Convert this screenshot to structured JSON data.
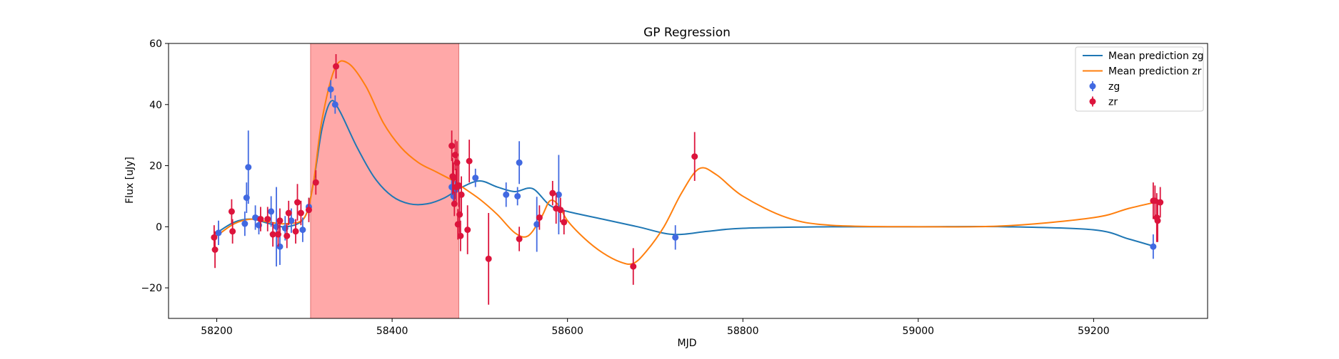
{
  "chart_data": {
    "type": "scatter",
    "title": "GP Regression",
    "xlabel": "MJD",
    "ylabel": "Flux [uJy]",
    "xlim": [
      58145,
      59330
    ],
    "ylim": [
      -30,
      60
    ],
    "xticks": [
      58200,
      58400,
      58600,
      58800,
      59000,
      59200
    ],
    "xtick_labels": [
      "58200",
      "58400",
      "58600",
      "58800",
      "59000",
      "59200"
    ],
    "yticks": [
      -20,
      0,
      20,
      40,
      60
    ],
    "ytick_labels": [
      "−20",
      "0",
      "20",
      "40",
      "60"
    ],
    "grid": false,
    "legend_position": "top-right",
    "shaded_region": {
      "x_start": 58307,
      "x_end": 58476,
      "color": "#ff9999"
    },
    "series": [
      {
        "name": "Mean prediction zg",
        "kind": "line",
        "color": "#1f77b4",
        "points": [
          [
            58200,
            -2
          ],
          [
            58220,
            1.5
          ],
          [
            58240,
            2.5
          ],
          [
            58260,
            1
          ],
          [
            58280,
            0
          ],
          [
            58300,
            3
          ],
          [
            58310,
            14
          ],
          [
            58320,
            32
          ],
          [
            58330,
            41
          ],
          [
            58340,
            38
          ],
          [
            58360,
            26
          ],
          [
            58380,
            16
          ],
          [
            58400,
            10
          ],
          [
            58420,
            7.5
          ],
          [
            58440,
            7.5
          ],
          [
            58460,
            9.5
          ],
          [
            58480,
            13
          ],
          [
            58500,
            15
          ],
          [
            58520,
            13
          ],
          [
            58540,
            11.5
          ],
          [
            58560,
            12.5
          ],
          [
            58580,
            7
          ],
          [
            58600,
            5
          ],
          [
            58640,
            2.5
          ],
          [
            58680,
            0
          ],
          [
            58720,
            -2.5
          ],
          [
            58760,
            -1.5
          ],
          [
            58800,
            -0.5
          ],
          [
            58900,
            0
          ],
          [
            59000,
            0
          ],
          [
            59100,
            0
          ],
          [
            59200,
            -1
          ],
          [
            59240,
            -4
          ],
          [
            59270,
            -6.5
          ]
        ]
      },
      {
        "name": "Mean prediction zr",
        "kind": "line",
        "color": "#ff7f0e",
        "points": [
          [
            58200,
            -3
          ],
          [
            58220,
            1
          ],
          [
            58240,
            2.5
          ],
          [
            58260,
            1.5
          ],
          [
            58280,
            1
          ],
          [
            58300,
            3
          ],
          [
            58310,
            14
          ],
          [
            58320,
            35
          ],
          [
            58335,
            52
          ],
          [
            58350,
            53.5
          ],
          [
            58370,
            46
          ],
          [
            58390,
            34
          ],
          [
            58410,
            26
          ],
          [
            58430,
            21
          ],
          [
            58450,
            18
          ],
          [
            58470,
            15
          ],
          [
            58480,
            13
          ],
          [
            58500,
            9
          ],
          [
            58520,
            4
          ],
          [
            58540,
            -2
          ],
          [
            58555,
            -3
          ],
          [
            58570,
            3
          ],
          [
            58580,
            8.5
          ],
          [
            58590,
            7
          ],
          [
            58600,
            2
          ],
          [
            58620,
            -4
          ],
          [
            58640,
            -8.5
          ],
          [
            58660,
            -11.5
          ],
          [
            58675,
            -12
          ],
          [
            58690,
            -8
          ],
          [
            58710,
            0
          ],
          [
            58730,
            11
          ],
          [
            58750,
            19
          ],
          [
            58770,
            17
          ],
          [
            58800,
            10
          ],
          [
            58850,
            3
          ],
          [
            58900,
            0.5
          ],
          [
            59000,
            0
          ],
          [
            59100,
            0.3
          ],
          [
            59200,
            3
          ],
          [
            59240,
            6
          ],
          [
            59270,
            8
          ]
        ]
      },
      {
        "name": "zg",
        "kind": "errorbar",
        "color": "#4169e1",
        "points": [
          [
            58202,
            -2,
            4
          ],
          [
            58232,
            1,
            4
          ],
          [
            58234,
            9.5,
            5
          ],
          [
            58236,
            19.5,
            12
          ],
          [
            58244,
            3,
            4
          ],
          [
            58248,
            0.5,
            3
          ],
          [
            58262,
            5,
            5
          ],
          [
            58268,
            0,
            13
          ],
          [
            58272,
            -6.5,
            6
          ],
          [
            58278,
            -0.5,
            4
          ],
          [
            58285,
            2,
            4
          ],
          [
            58298,
            -1,
            4
          ],
          [
            58305,
            6.5,
            3
          ],
          [
            58330,
            45,
            3
          ],
          [
            58335,
            40,
            3
          ],
          [
            58468,
            13,
            3
          ],
          [
            58470,
            10,
            3
          ],
          [
            58472,
            12,
            3
          ],
          [
            58495,
            16,
            3
          ],
          [
            58530,
            10.5,
            4
          ],
          [
            58543,
            10,
            3
          ],
          [
            58545,
            21,
            7
          ],
          [
            58565,
            0.8,
            9
          ],
          [
            58590,
            10.5,
            13
          ],
          [
            58723,
            -3.5,
            4
          ],
          [
            59268,
            -6.5,
            4
          ]
        ]
      },
      {
        "name": "zr",
        "kind": "errorbar",
        "color": "#dc143c",
        "points": [
          [
            58197,
            -3.5,
            4
          ],
          [
            58198,
            -7.5,
            6
          ],
          [
            58217,
            5,
            4
          ],
          [
            58218,
            -1.5,
            4
          ],
          [
            58250,
            2.5,
            4
          ],
          [
            58258,
            2.5,
            4
          ],
          [
            58264,
            -2.5,
            4
          ],
          [
            58270,
            -2.5,
            4
          ],
          [
            58272,
            2,
            4
          ],
          [
            58280,
            -3,
            4
          ],
          [
            58282,
            4.5,
            4
          ],
          [
            58290,
            -1.5,
            4
          ],
          [
            58292,
            8,
            6
          ],
          [
            58296,
            4.5,
            4
          ],
          [
            58305,
            5.5,
            4
          ],
          [
            58313,
            14.5,
            4
          ],
          [
            58336,
            52.5,
            4
          ],
          [
            58468,
            26.5,
            5
          ],
          [
            58469,
            16.5,
            6
          ],
          [
            58470,
            16,
            5
          ],
          [
            58471,
            7.5,
            4
          ],
          [
            58472,
            23.5,
            5
          ],
          [
            58473,
            13,
            6
          ],
          [
            58474,
            21,
            7
          ],
          [
            58475,
            0.8,
            5
          ],
          [
            58476,
            13.5,
            7
          ],
          [
            58477,
            4,
            6
          ],
          [
            58478,
            -3,
            5
          ],
          [
            58479,
            10.5,
            6
          ],
          [
            58486,
            -1,
            8
          ],
          [
            58488,
            21.5,
            7
          ],
          [
            58510,
            -10.5,
            15
          ],
          [
            58545,
            -4,
            4
          ],
          [
            58568,
            3,
            4
          ],
          [
            58583,
            11,
            4
          ],
          [
            58587,
            6,
            5
          ],
          [
            58592,
            5.5,
            4
          ],
          [
            58596,
            1.5,
            4
          ],
          [
            58675,
            -13,
            6
          ],
          [
            58745,
            23,
            8
          ],
          [
            59268,
            8.5,
            6
          ],
          [
            59270,
            8.5,
            5
          ],
          [
            59272,
            3,
            8
          ],
          [
            59273,
            2,
            7
          ],
          [
            59276,
            8,
            5
          ]
        ]
      }
    ]
  }
}
